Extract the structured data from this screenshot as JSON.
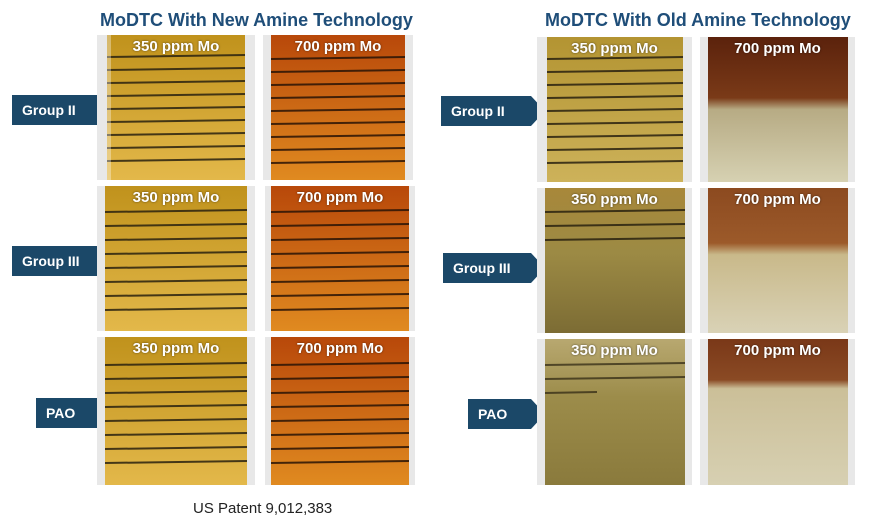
{
  "headings": {
    "new": "MoDTC With New Amine Technology",
    "old": "MoDTC With Old Amine Technology"
  },
  "rows": [
    "Group II",
    "Group III",
    "PAO"
  ],
  "concentrations": {
    "low": "350 ppm Mo",
    "high": "700 ppm Mo"
  },
  "footer": "US Patent 9,012,383",
  "colors": {
    "arrow": "#1b4868",
    "heading": "#1f4e79",
    "new_350": "#c89a1c",
    "new_700": "#d0620c",
    "old_350": "#a48a3a",
    "old_700_top": "#6b2a10",
    "old_700_bottom": "#ccc7a6"
  }
}
